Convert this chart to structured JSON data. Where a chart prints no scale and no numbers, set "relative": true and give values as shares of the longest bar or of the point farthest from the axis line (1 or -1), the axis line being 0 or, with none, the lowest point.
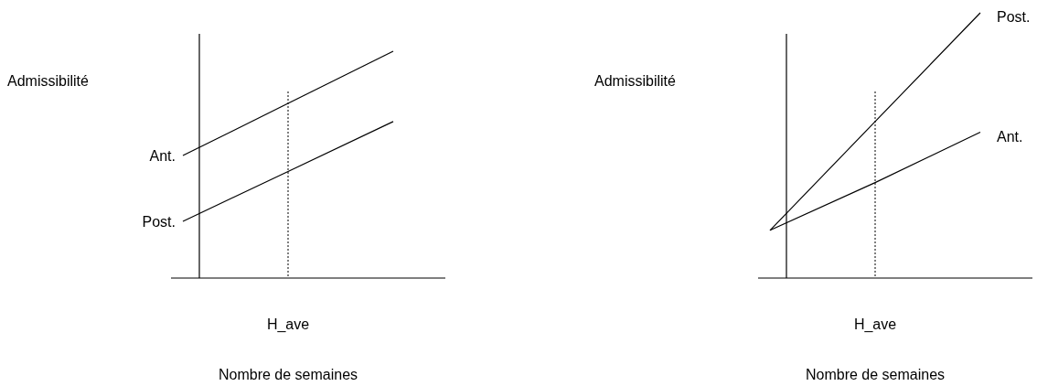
{
  "chart_data": [
    {
      "type": "line",
      "relative": true,
      "ylabel": "Admissibilité",
      "xlabel": "Nombre de semaines",
      "categories": [
        null,
        null,
        null
      ],
      "legend": "left",
      "grid": false,
      "marker": "none",
      "series": [
        {
          "name": "Ant.",
          "color": "#000000",
          "values": [
            0.54,
            0.77,
            1.0
          ]
        },
        {
          "name": "Post.",
          "color": "#000000",
          "values": [
            0.25,
            0.47,
            0.69
          ]
        }
      ],
      "ref_lines": [
        {
          "axis": "x",
          "value": "H_ave",
          "line_style": "dotted",
          "color": "#000000"
        }
      ]
    },
    {
      "type": "line",
      "relative": true,
      "ylabel": "Admissibilité",
      "xlabel": "Nombre de semaines",
      "categories": [
        null,
        null,
        null
      ],
      "legend": "right",
      "grid": false,
      "marker": "none",
      "series": [
        {
          "name": "Post.",
          "color": "#000000",
          "values": [
            0.18,
            0.59,
            1.0
          ]
        },
        {
          "name": "Ant.",
          "color": "#000000",
          "values": [
            0.18,
            0.36,
            0.55
          ]
        }
      ],
      "ref_lines": [
        {
          "axis": "x",
          "value": "H_ave",
          "line_style": "dotted",
          "color": "#000000"
        }
      ]
    }
  ]
}
